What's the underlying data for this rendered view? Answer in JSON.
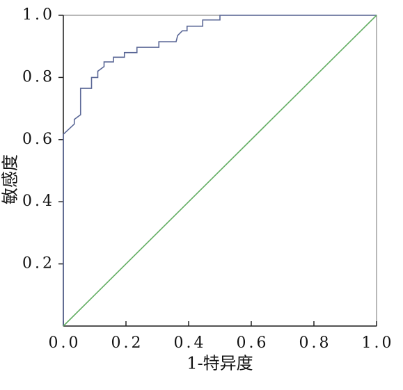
{
  "chart_data": {
    "type": "line",
    "x_label": "1-特异度",
    "y_label": "敏感度",
    "xlim": [
      0,
      1
    ],
    "ylim": [
      0,
      1
    ],
    "xticks": [
      {
        "value": 0,
        "label": "0.0"
      },
      0.2,
      0.4,
      0.6,
      0.8,
      {
        "value": 1,
        "label": "1.0"
      }
    ],
    "yticks": [
      0.2,
      0.4,
      0.6,
      0.8,
      {
        "value": 1,
        "label": "1.0"
      }
    ],
    "series": [
      {
        "color": "#5a6796",
        "x": [
          0,
          0,
          0.035,
          0.035,
          0.055,
          0.055,
          0.09,
          0.09,
          0.11,
          0.11,
          0.13,
          0.13,
          0.16,
          0.16,
          0.195,
          0.195,
          0.235,
          0.235,
          0.305,
          0.305,
          0.36,
          0.365,
          0.38,
          0.395,
          0.395,
          0.445,
          0.445,
          0.5,
          0.5,
          1
        ],
        "values": [
          0,
          0.617,
          0.65,
          0.665,
          0.68,
          0.765,
          0.765,
          0.8,
          0.8,
          0.82,
          0.835,
          0.85,
          0.85,
          0.865,
          0.865,
          0.88,
          0.88,
          0.897,
          0.897,
          0.915,
          0.915,
          0.935,
          0.95,
          0.95,
          0.965,
          0.965,
          0.985,
          0.985,
          1,
          1
        ]
      },
      {
        "color": "#62ad62",
        "x": [
          0,
          1
        ],
        "values": [
          0,
          1
        ]
      }
    ]
  }
}
